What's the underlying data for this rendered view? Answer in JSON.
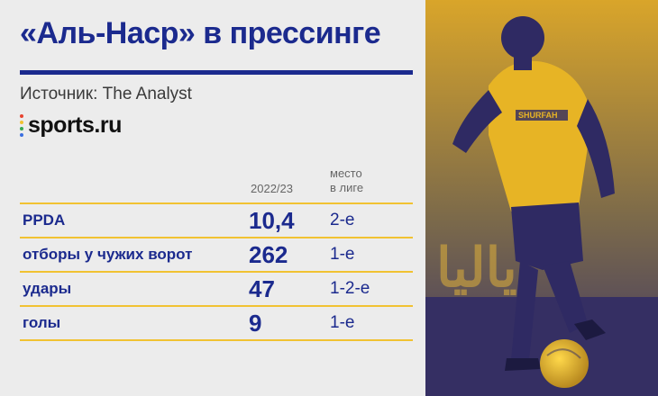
{
  "title": "«Аль-Наср» в прессинге",
  "source": "Источник: The Analyst",
  "logo": {
    "text": "sports.ru",
    "dot_colors": [
      "#e8432f",
      "#f1c232",
      "#35a853",
      "#3b6fe0"
    ]
  },
  "table": {
    "header_season": "2022/23",
    "header_place_line1": "место",
    "header_place_line2": "в лиге",
    "rows": [
      {
        "label": "PPDA",
        "value": "10,4",
        "place": "2-е"
      },
      {
        "label": "отборы у чужих ворот",
        "value": "262",
        "place": "1-е"
      },
      {
        "label": "удары",
        "value": "47",
        "place": "1-2-е"
      },
      {
        "label": "голы",
        "value": "9",
        "place": "1-е"
      }
    ]
  },
  "photo": {
    "jersey_text": "SHURFAH"
  },
  "colors": {
    "accent_blue": "#1b2a8e",
    "rule_yellow": "#f1c232",
    "photo_yellow": "#e8b52a",
    "photo_dark": "#2f2a63"
  }
}
